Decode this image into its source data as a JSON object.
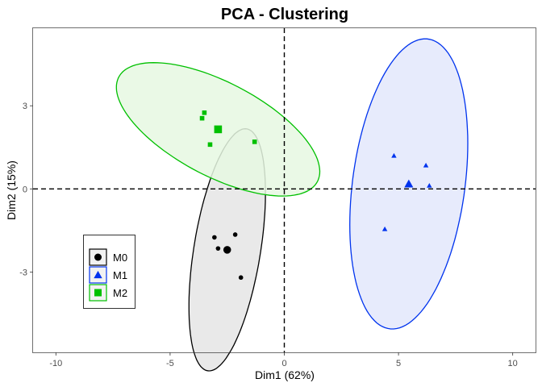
{
  "chart_data": {
    "type": "scatter",
    "title": "PCA - Clustering",
    "xlabel": "Dim1 (62%)",
    "ylabel": "Dim2 (15%)",
    "xlim": [
      -11,
      11
    ],
    "ylim": [
      -5.9,
      5.8
    ],
    "x_ticks": [
      -10,
      -5,
      0,
      5,
      10
    ],
    "x_tick_labels": [
      "-10",
      "-5",
      "0",
      "5",
      "10"
    ],
    "y_ticks": [
      -3,
      0,
      3
    ],
    "y_tick_labels": [
      "-3",
      "0",
      "3"
    ],
    "grid": false,
    "reference_lines": {
      "x": 0,
      "y": 0,
      "style": "dashed"
    },
    "legend": {
      "position": "bottom-left"
    },
    "series": [
      {
        "name": "M0",
        "shape": "circle",
        "color": "#000000",
        "fill": "#e5e5e5",
        "points": [
          [
            -3.06,
            -1.75
          ],
          [
            -2.9,
            -2.15
          ],
          [
            -2.15,
            -1.65
          ],
          [
            -1.9,
            -3.2
          ]
        ],
        "centroid": [
          -2.5,
          -2.2
        ],
        "ellipse": {
          "cx": -2.5,
          "cy": -2.2,
          "rx": 4.45,
          "ry": 1.45,
          "angle_deg": 78.5
        }
      },
      {
        "name": "M1",
        "shape": "triangle",
        "color": "#0033ee",
        "fill": "#e3e8fb",
        "points": [
          [
            4.8,
            1.2
          ],
          [
            6.2,
            0.85
          ],
          [
            6.35,
            0.12
          ],
          [
            4.4,
            -1.45
          ]
        ],
        "centroid": [
          5.45,
          0.18
        ],
        "ellipse": {
          "cx": 5.45,
          "cy": 0.18,
          "rx": 5.3,
          "ry": 2.45,
          "angle_deg": 80.0
        }
      },
      {
        "name": "M2",
        "shape": "square",
        "color": "#00c000",
        "fill": "#e6f8e2",
        "points": [
          [
            -3.5,
            2.75
          ],
          [
            -3.6,
            2.55
          ],
          [
            -3.25,
            1.6
          ],
          [
            -1.3,
            1.7
          ]
        ],
        "centroid": [
          -2.9,
          2.15
        ],
        "ellipse": {
          "cx": -2.9,
          "cy": 2.15,
          "rx": 4.75,
          "ry": 1.75,
          "angle_deg": -22.0
        }
      }
    ]
  }
}
